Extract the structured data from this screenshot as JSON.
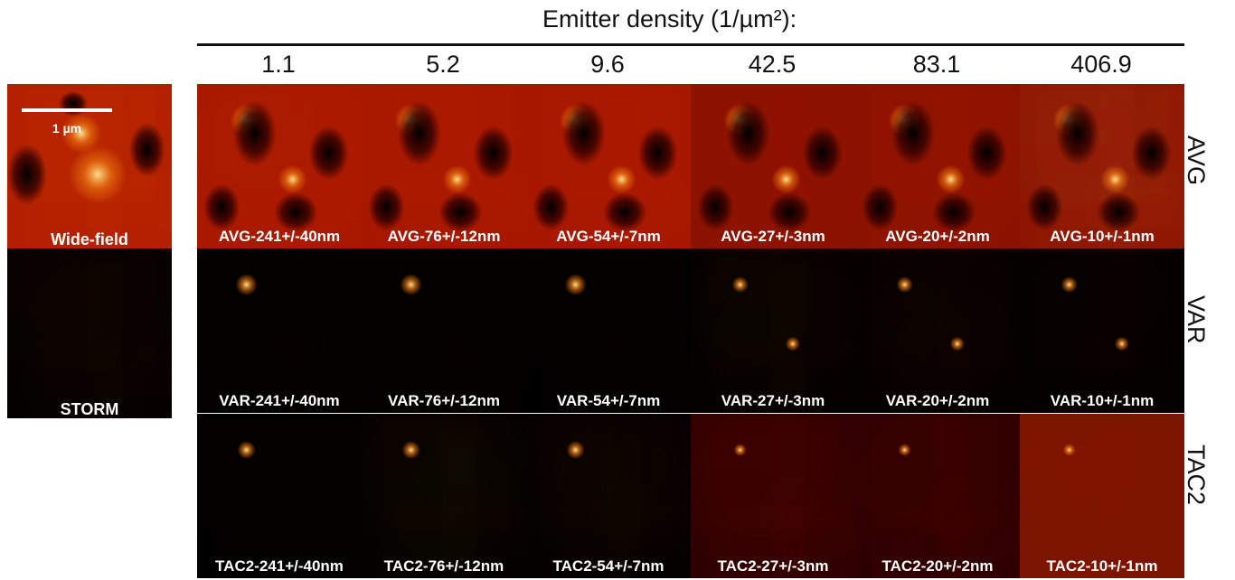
{
  "header": {
    "title": "Emitter density (1/µm²):",
    "densities": [
      "1.1",
      "5.2",
      "9.6",
      "42.5",
      "83.1",
      "406.9"
    ]
  },
  "row_labels": [
    "AVG",
    "VAR",
    "TAC2"
  ],
  "reference": {
    "widefield_label": "Wide-field",
    "storm_label": "STORM",
    "scalebar_label": "1 µm"
  },
  "panel_labels": [
    [
      "AVG-241+/-40nm",
      "AVG-76+/-12nm",
      "AVG-54+/-7nm",
      "AVG-27+/-3nm",
      "AVG-20+/-2nm",
      "AVG-10+/-1nm"
    ],
    [
      "VAR-241+/-40nm",
      "VAR-76+/-12nm",
      "VAR-54+/-7nm",
      "VAR-27+/-3nm",
      "VAR-20+/-2nm",
      "VAR-10+/-1nm"
    ],
    [
      "TAC2-241+/-40nm",
      "TAC2-76+/-12nm",
      "TAC2-54+/-7nm",
      "TAC2-27+/-3nm",
      "TAC2-20+/-2nm",
      "TAC2-10+/-1nm"
    ]
  ],
  "colors": {
    "dark": "#000000",
    "deep_red": "#5a0000",
    "red": "#c01a00",
    "orange": "#f07a10",
    "yellow": "#ffe08a",
    "text": "#ffffff",
    "ink": "#111111"
  }
}
